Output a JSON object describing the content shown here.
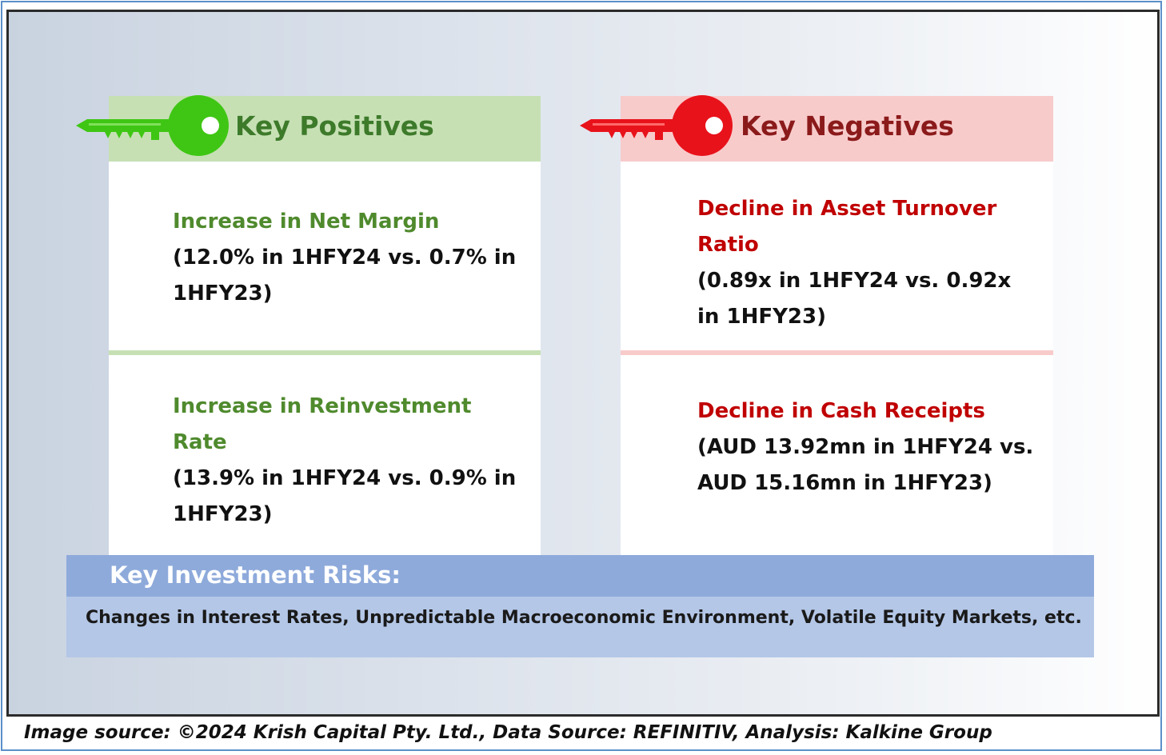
{
  "positives": {
    "title": "Key Positives",
    "accent_color": "#3fc614",
    "items": [
      {
        "heading_line1": "Increase in Net Margin",
        "detail_line1": "(12.0% in 1HFY24 vs. 0.7% in",
        "detail_line2": "1HFY23)"
      },
      {
        "heading_line1": "Increase in Reinvestment",
        "heading_line2": "Rate",
        "detail_line1": "(13.9% in 1HFY24 vs. 0.9% in",
        "detail_line2": "1HFY23)"
      }
    ]
  },
  "negatives": {
    "title": "Key Negatives",
    "accent_color": "#e8121b",
    "items": [
      {
        "heading_line1": "Decline in Asset Turnover",
        "heading_line2": "Ratio",
        "detail_line1": "(0.89x in 1HFY24 vs. 0.92x",
        "detail_line2": "in 1HFY23)"
      },
      {
        "heading_line1": "Decline in Cash Receipts",
        "detail_line1": "(AUD 13.92mn in 1HFY24 vs.",
        "detail_line2": "AUD 15.16mn in 1HFY23)"
      }
    ]
  },
  "risks": {
    "title": "Key Investment Risks:",
    "text": "Changes in Interest Rates, Unpredictable Macroeconomic Environment, Volatile Equity Markets, etc."
  },
  "footer": {
    "source": "Image source: ©2024 Krish Capital Pty. Ltd., Data Source: REFINITIV, Analysis: Kalkine Group"
  }
}
